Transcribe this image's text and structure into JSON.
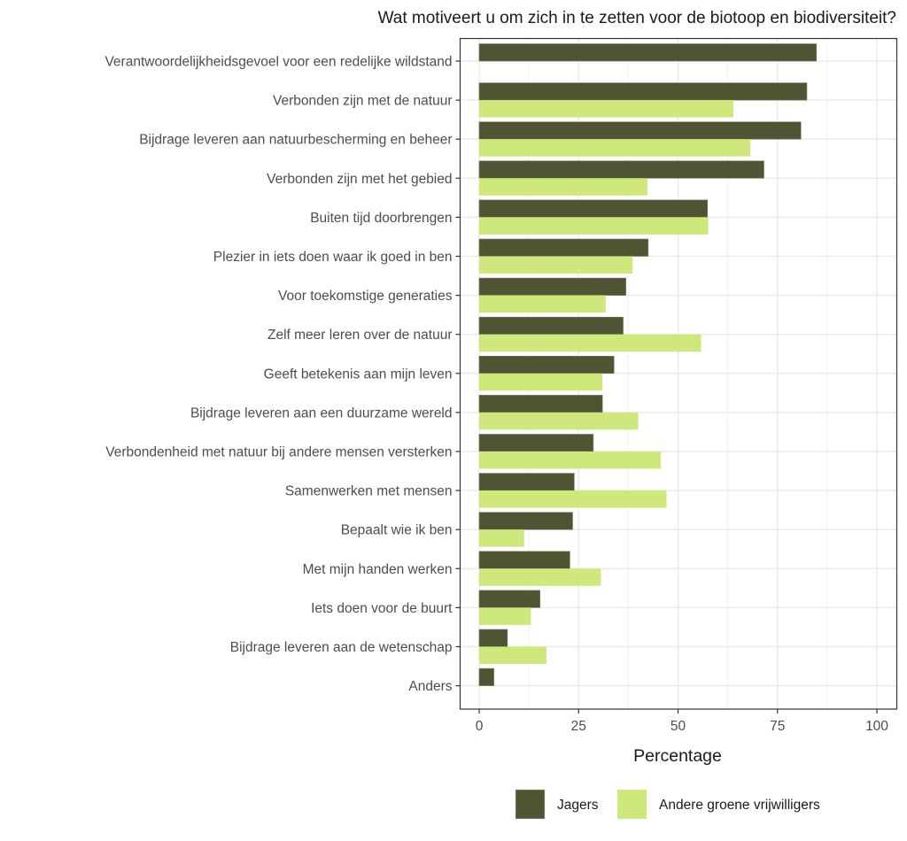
{
  "chart_data": {
    "type": "bar",
    "orientation": "horizontal",
    "title": "Wat motiveert u om zich in te zetten voor de biotoop en biodiversiteit?",
    "xlabel": "Percentage",
    "ylabel": "",
    "xlim": [
      0,
      100
    ],
    "xticks": [
      0,
      25,
      50,
      75,
      100
    ],
    "xtick_labels": [
      "0",
      "25",
      "50",
      "75",
      "100"
    ],
    "grid": true,
    "legend_position": "bottom-right",
    "categories": [
      "Verantwoordelijkheidsgevoel voor een redelijke wildstand",
      "Verbonden zijn met de natuur",
      "Bijdrage leveren aan natuurbescherming en beheer",
      "Verbonden zijn met het gebied",
      "Buiten tijd doorbrengen",
      "Plezier in iets doen waar ik goed in ben",
      "Voor toekomstige generaties",
      "Zelf meer leren over de natuur",
      "Geeft betekenis aan mijn leven",
      "Bijdrage leveren aan een duurzame wereld",
      "Verbondenheid met natuur bij andere mensen versterken",
      "Samenwerken met mensen",
      "Bepaalt wie ik ben",
      "Met mijn handen werken",
      "Iets doen voor de buurt",
      "Bijdrage leveren aan de wetenschap",
      "Anders"
    ],
    "series": [
      {
        "name": "Jagers",
        "color": "#4f5532",
        "values": [
          84.8,
          82.4,
          80.9,
          71.6,
          57.4,
          42.5,
          36.9,
          36.2,
          33.9,
          31.0,
          28.7,
          23.9,
          23.5,
          22.8,
          15.3,
          7.1,
          3.7
        ]
      },
      {
        "name": "Andere groene vrijwilligers",
        "color": "#cfe87b",
        "values": [
          null,
          63.9,
          68.2,
          42.3,
          57.6,
          38.6,
          31.8,
          55.8,
          31.0,
          40.0,
          45.7,
          47.1,
          11.3,
          30.6,
          13.0,
          16.9,
          null
        ]
      }
    ]
  }
}
